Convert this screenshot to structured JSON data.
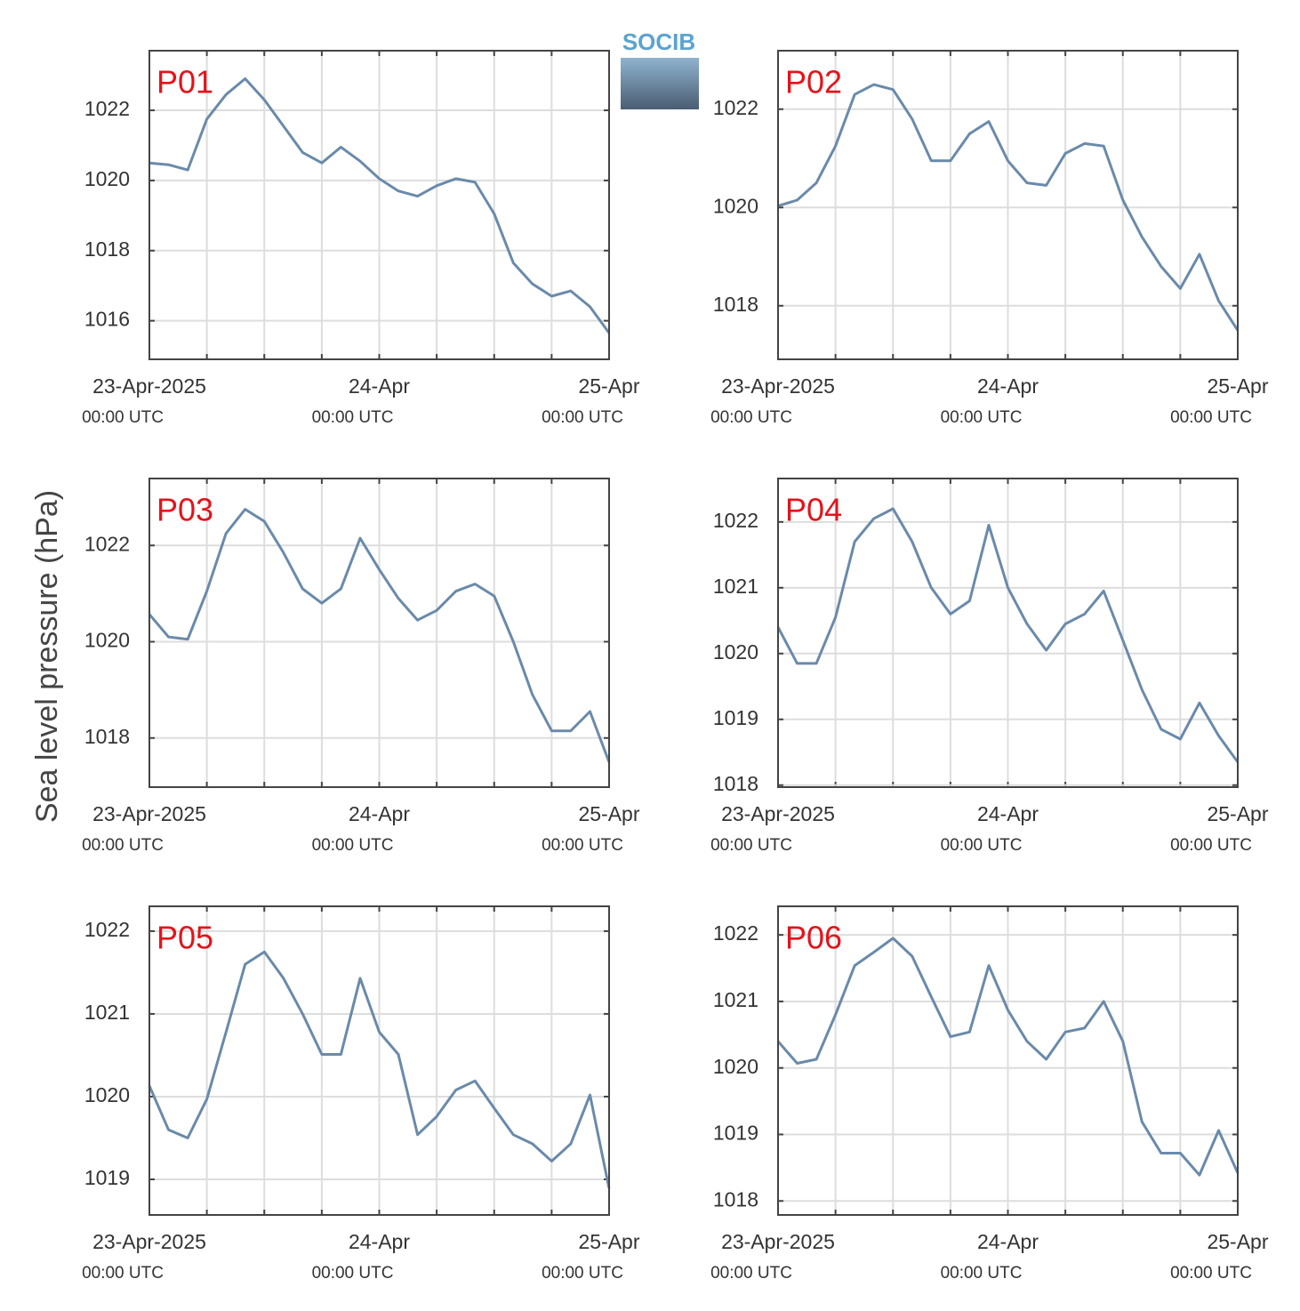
{
  "ylabel": "Sea level pressure (hPa)",
  "logo": "SOCIB",
  "chart_data": [
    {
      "type": "line",
      "title": "P01",
      "color": "#6a8aaa",
      "x": [
        "2025-04-23T00:00",
        "2025-04-23T02:00",
        "2025-04-23T04:00",
        "2025-04-23T06:00",
        "2025-04-23T08:00",
        "2025-04-23T10:00",
        "2025-04-23T12:00",
        "2025-04-23T14:00",
        "2025-04-23T16:00",
        "2025-04-23T18:00",
        "2025-04-23T20:00",
        "2025-04-23T22:00",
        "2025-04-24T00:00",
        "2025-04-24T02:00",
        "2025-04-24T04:00",
        "2025-04-24T06:00",
        "2025-04-24T08:00",
        "2025-04-24T10:00",
        "2025-04-24T12:00",
        "2025-04-24T14:00",
        "2025-04-24T16:00",
        "2025-04-24T18:00",
        "2025-04-24T20:00",
        "2025-04-24T22:00",
        "2025-04-25T00:00"
      ],
      "values": [
        1020.5,
        1020.45,
        1020.3,
        1021.75,
        1022.45,
        1022.9,
        1022.3,
        1021.55,
        1020.8,
        1020.5,
        1020.95,
        1020.55,
        1020.05,
        1019.7,
        1019.55,
        1019.85,
        1020.05,
        1019.95,
        1019.05,
        1017.65,
        1017.05,
        1016.7,
        1016.85,
        1016.4,
        1015.65
      ],
      "xlim": [
        "2025-04-23T00:00",
        "2025-04-25T00:00"
      ],
      "ylim": [
        1014.9,
        1023.7
      ],
      "yticks": [
        1016,
        1018,
        1020,
        1022
      ],
      "xticks": [
        {
          "value": "2025-04-23T00:00",
          "label": "23-Apr-2025",
          "sublabel": "00:00 UTC"
        },
        {
          "value": "2025-04-23T06:00",
          "label": null
        },
        {
          "value": "2025-04-23T12:00",
          "label": null
        },
        {
          "value": "2025-04-23T18:00",
          "label": null
        },
        {
          "value": "2025-04-24T00:00",
          "label": "24-Apr",
          "sublabel": "00:00 UTC"
        },
        {
          "value": "2025-04-24T06:00",
          "label": null
        },
        {
          "value": "2025-04-24T12:00",
          "label": null
        },
        {
          "value": "2025-04-24T18:00",
          "label": null
        },
        {
          "value": "2025-04-25T00:00",
          "label": "25-Apr",
          "sublabel": "00:00 UTC"
        }
      ],
      "grid": true
    },
    {
      "type": "line",
      "title": "P02",
      "color": "#6a8aaa",
      "x": [
        "2025-04-23T00:00",
        "2025-04-23T02:00",
        "2025-04-23T04:00",
        "2025-04-23T06:00",
        "2025-04-23T08:00",
        "2025-04-23T10:00",
        "2025-04-23T12:00",
        "2025-04-23T14:00",
        "2025-04-23T16:00",
        "2025-04-23T18:00",
        "2025-04-23T20:00",
        "2025-04-23T22:00",
        "2025-04-24T00:00",
        "2025-04-24T02:00",
        "2025-04-24T04:00",
        "2025-04-24T06:00",
        "2025-04-24T08:00",
        "2025-04-24T10:00",
        "2025-04-24T12:00",
        "2025-04-24T14:00",
        "2025-04-24T16:00",
        "2025-04-24T18:00",
        "2025-04-24T20:00",
        "2025-04-24T22:00",
        "2025-04-25T00:00"
      ],
      "values": [
        1020.03,
        1020.15,
        1020.5,
        1021.25,
        1022.3,
        1022.5,
        1022.4,
        1021.8,
        1020.95,
        1020.95,
        1021.5,
        1021.75,
        1020.95,
        1020.5,
        1020.45,
        1021.1,
        1021.3,
        1021.25,
        1020.15,
        1019.4,
        1018.8,
        1018.35,
        1019.05,
        1018.1,
        1017.5
      ],
      "xlim": [
        "2025-04-23T00:00",
        "2025-04-25T00:00"
      ],
      "ylim": [
        1016.91,
        1023.19
      ],
      "yticks": [
        1018,
        1020,
        1022
      ],
      "xticks": [
        {
          "value": "2025-04-23T00:00",
          "label": "23-Apr-2025",
          "sublabel": "00:00 UTC"
        },
        {
          "value": "2025-04-23T06:00",
          "label": null
        },
        {
          "value": "2025-04-23T12:00",
          "label": null
        },
        {
          "value": "2025-04-23T18:00",
          "label": null
        },
        {
          "value": "2025-04-24T00:00",
          "label": "24-Apr",
          "sublabel": "00:00 UTC"
        },
        {
          "value": "2025-04-24T06:00",
          "label": null
        },
        {
          "value": "2025-04-24T12:00",
          "label": null
        },
        {
          "value": "2025-04-24T18:00",
          "label": null
        },
        {
          "value": "2025-04-25T00:00",
          "label": "25-Apr",
          "sublabel": "00:00 UTC"
        }
      ],
      "grid": true
    },
    {
      "type": "line",
      "title": "P03",
      "color": "#6a8aaa",
      "x": [
        "2025-04-23T00:00",
        "2025-04-23T02:00",
        "2025-04-23T04:00",
        "2025-04-23T06:00",
        "2025-04-23T08:00",
        "2025-04-23T10:00",
        "2025-04-23T12:00",
        "2025-04-23T14:00",
        "2025-04-23T16:00",
        "2025-04-23T18:00",
        "2025-04-23T20:00",
        "2025-04-23T22:00",
        "2025-04-24T00:00",
        "2025-04-24T02:00",
        "2025-04-24T04:00",
        "2025-04-24T06:00",
        "2025-04-24T08:00",
        "2025-04-24T10:00",
        "2025-04-24T12:00",
        "2025-04-24T14:00",
        "2025-04-24T16:00",
        "2025-04-24T18:00",
        "2025-04-24T20:00",
        "2025-04-24T22:00",
        "2025-04-25T00:00"
      ],
      "values": [
        1020.57,
        1020.1,
        1020.05,
        1021.05,
        1022.25,
        1022.75,
        1022.5,
        1021.85,
        1021.1,
        1020.8,
        1021.1,
        1022.15,
        1021.5,
        1020.9,
        1020.45,
        1020.65,
        1021.05,
        1021.2,
        1020.95,
        1020.0,
        1018.9,
        1018.15,
        1018.15,
        1018.55,
        1017.5
      ],
      "xlim": [
        "2025-04-23T00:00",
        "2025-04-25T00:00"
      ],
      "ylim": [
        1016.98,
        1023.39
      ],
      "yticks": [
        1018,
        1020,
        1022
      ],
      "xticks": [
        {
          "value": "2025-04-23T00:00",
          "label": "23-Apr-2025",
          "sublabel": "00:00 UTC"
        },
        {
          "value": "2025-04-23T06:00",
          "label": null
        },
        {
          "value": "2025-04-23T12:00",
          "label": null
        },
        {
          "value": "2025-04-23T18:00",
          "label": null
        },
        {
          "value": "2025-04-24T00:00",
          "label": "24-Apr",
          "sublabel": "00:00 UTC"
        },
        {
          "value": "2025-04-24T06:00",
          "label": null
        },
        {
          "value": "2025-04-24T12:00",
          "label": null
        },
        {
          "value": "2025-04-24T18:00",
          "label": null
        },
        {
          "value": "2025-04-25T00:00",
          "label": "25-Apr",
          "sublabel": "00:00 UTC"
        }
      ],
      "grid": true
    },
    {
      "type": "line",
      "title": "P04",
      "color": "#6a8aaa",
      "x": [
        "2025-04-23T00:00",
        "2025-04-23T02:00",
        "2025-04-23T04:00",
        "2025-04-23T06:00",
        "2025-04-23T08:00",
        "2025-04-23T10:00",
        "2025-04-23T12:00",
        "2025-04-23T14:00",
        "2025-04-23T16:00",
        "2025-04-23T18:00",
        "2025-04-23T20:00",
        "2025-04-23T22:00",
        "2025-04-24T00:00",
        "2025-04-24T02:00",
        "2025-04-24T04:00",
        "2025-04-24T06:00",
        "2025-04-24T08:00",
        "2025-04-24T10:00",
        "2025-04-24T12:00",
        "2025-04-24T14:00",
        "2025-04-24T16:00",
        "2025-04-24T18:00",
        "2025-04-24T20:00",
        "2025-04-24T22:00",
        "2025-04-25T00:00"
      ],
      "values": [
        1020.4,
        1019.85,
        1019.85,
        1020.55,
        1021.7,
        1022.05,
        1022.2,
        1021.7,
        1021.0,
        1020.6,
        1020.8,
        1021.95,
        1021.0,
        1020.45,
        1020.05,
        1020.45,
        1020.6,
        1020.95,
        1020.2,
        1019.45,
        1018.85,
        1018.7,
        1019.25,
        1018.75,
        1018.35
      ],
      "xlim": [
        "2025-04-23T00:00",
        "2025-04-25T00:00"
      ],
      "ylim": [
        1017.97,
        1022.66
      ],
      "yticks": [
        1018,
        1019,
        1020,
        1021,
        1022
      ],
      "xticks": [
        {
          "value": "2025-04-23T00:00",
          "label": "23-Apr-2025",
          "sublabel": "00:00 UTC"
        },
        {
          "value": "2025-04-23T06:00",
          "label": null
        },
        {
          "value": "2025-04-23T12:00",
          "label": null
        },
        {
          "value": "2025-04-23T18:00",
          "label": null
        },
        {
          "value": "2025-04-24T00:00",
          "label": "24-Apr",
          "sublabel": "00:00 UTC"
        },
        {
          "value": "2025-04-24T06:00",
          "label": null
        },
        {
          "value": "2025-04-24T12:00",
          "label": null
        },
        {
          "value": "2025-04-24T18:00",
          "label": null
        },
        {
          "value": "2025-04-25T00:00",
          "label": "25-Apr",
          "sublabel": "00:00 UTC"
        }
      ],
      "grid": true
    },
    {
      "type": "line",
      "title": "P05",
      "color": "#6a8aaa",
      "x": [
        "2025-04-23T00:00",
        "2025-04-23T02:00",
        "2025-04-23T04:00",
        "2025-04-23T06:00",
        "2025-04-23T08:00",
        "2025-04-23T10:00",
        "2025-04-23T12:00",
        "2025-04-23T14:00",
        "2025-04-23T16:00",
        "2025-04-23T18:00",
        "2025-04-23T20:00",
        "2025-04-23T22:00",
        "2025-04-24T00:00",
        "2025-04-24T02:00",
        "2025-04-24T04:00",
        "2025-04-24T06:00",
        "2025-04-24T08:00",
        "2025-04-24T10:00",
        "2025-04-24T12:00",
        "2025-04-24T14:00",
        "2025-04-24T16:00",
        "2025-04-24T18:00",
        "2025-04-24T20:00",
        "2025-04-24T22:00",
        "2025-04-25T00:00"
      ],
      "values": [
        1020.13,
        1019.6,
        1019.5,
        1019.97,
        1020.78,
        1021.6,
        1021.75,
        1021.43,
        1021.0,
        1020.51,
        1020.51,
        1021.43,
        1020.78,
        1020.51,
        1019.54,
        1019.76,
        1020.08,
        1020.19,
        1019.86,
        1019.54,
        1019.43,
        1019.22,
        1019.43,
        1020.02,
        1018.89
      ],
      "xlim": [
        "2025-04-23T00:00",
        "2025-04-25T00:00"
      ],
      "ylim": [
        1018.57,
        1022.3
      ],
      "yticks": [
        1019,
        1020,
        1021,
        1022
      ],
      "xticks": [
        {
          "value": "2025-04-23T00:00",
          "label": "23-Apr-2025",
          "sublabel": "00:00 UTC"
        },
        {
          "value": "2025-04-23T06:00",
          "label": null
        },
        {
          "value": "2025-04-23T12:00",
          "label": null
        },
        {
          "value": "2025-04-23T18:00",
          "label": null
        },
        {
          "value": "2025-04-24T00:00",
          "label": "24-Apr",
          "sublabel": "00:00 UTC"
        },
        {
          "value": "2025-04-24T06:00",
          "label": null
        },
        {
          "value": "2025-04-24T12:00",
          "label": null
        },
        {
          "value": "2025-04-24T18:00",
          "label": null
        },
        {
          "value": "2025-04-25T00:00",
          "label": "25-Apr",
          "sublabel": "00:00 UTC"
        }
      ],
      "grid": true
    },
    {
      "type": "line",
      "title": "P06",
      "color": "#6a8aaa",
      "x": [
        "2025-04-23T00:00",
        "2025-04-23T02:00",
        "2025-04-23T04:00",
        "2025-04-23T06:00",
        "2025-04-23T08:00",
        "2025-04-23T10:00",
        "2025-04-23T12:00",
        "2025-04-23T14:00",
        "2025-04-23T16:00",
        "2025-04-23T18:00",
        "2025-04-23T20:00",
        "2025-04-23T22:00",
        "2025-04-24T00:00",
        "2025-04-24T02:00",
        "2025-04-24T04:00",
        "2025-04-24T06:00",
        "2025-04-24T08:00",
        "2025-04-24T10:00",
        "2025-04-24T12:00",
        "2025-04-24T14:00",
        "2025-04-24T16:00",
        "2025-04-24T18:00",
        "2025-04-24T20:00",
        "2025-04-24T22:00",
        "2025-04-25T00:00"
      ],
      "values": [
        1020.4,
        1020.07,
        1020.13,
        1020.8,
        1021.54,
        1021.74,
        1021.95,
        1021.68,
        1021.07,
        1020.47,
        1020.54,
        1021.54,
        1020.87,
        1020.4,
        1020.13,
        1020.54,
        1020.6,
        1021.0,
        1020.4,
        1019.19,
        1018.72,
        1018.72,
        1018.39,
        1019.06,
        1018.42
      ],
      "xlim": [
        "2025-04-23T00:00",
        "2025-04-25T00:00"
      ],
      "ylim": [
        1017.79,
        1022.43
      ],
      "yticks": [
        1018,
        1019,
        1020,
        1021,
        1022
      ],
      "xticks": [
        {
          "value": "2025-04-23T00:00",
          "label": "23-Apr-2025",
          "sublabel": "00:00 UTC"
        },
        {
          "value": "2025-04-23T06:00",
          "label": null
        },
        {
          "value": "2025-04-23T12:00",
          "label": null
        },
        {
          "value": "2025-04-23T18:00",
          "label": null
        },
        {
          "value": "2025-04-24T00:00",
          "label": "24-Apr",
          "sublabel": "00:00 UTC"
        },
        {
          "value": "2025-04-24T06:00",
          "label": null
        },
        {
          "value": "2025-04-24T12:00",
          "label": null
        },
        {
          "value": "2025-04-24T18:00",
          "label": null
        },
        {
          "value": "2025-04-25T00:00",
          "label": "25-Apr",
          "sublabel": "00:00 UTC"
        }
      ],
      "grid": true
    }
  ]
}
